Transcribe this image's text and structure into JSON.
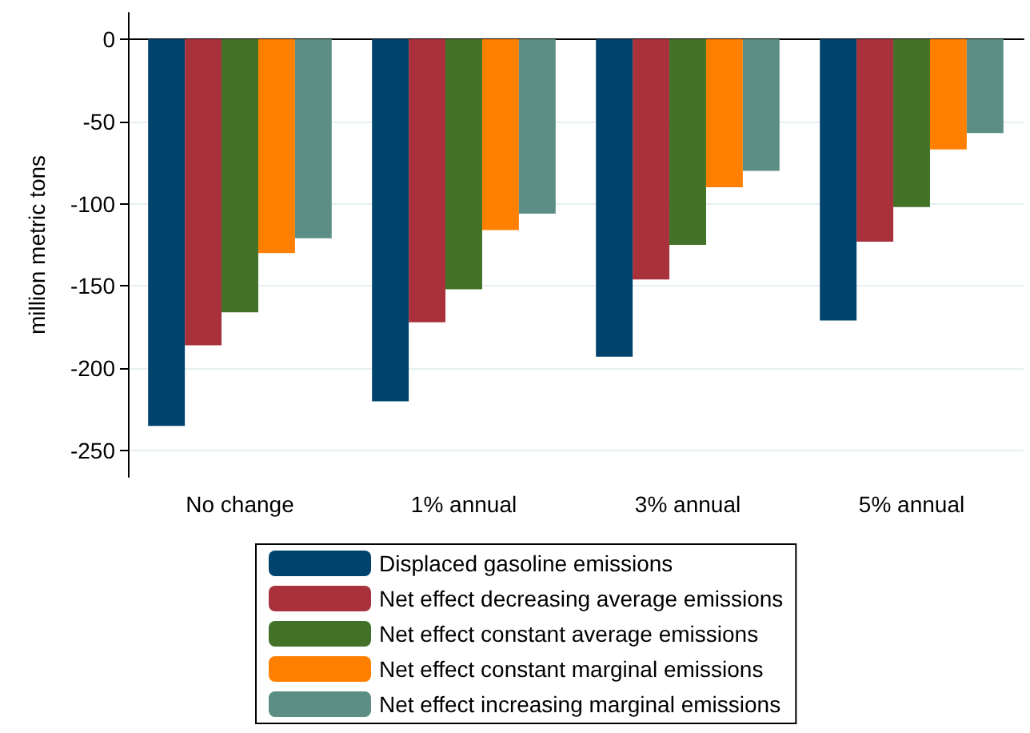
{
  "chart_data": {
    "type": "bar",
    "ylabel": "million metric tons",
    "categories": [
      "No change",
      "1% annual",
      "3% annual",
      "5% annual"
    ],
    "series": [
      {
        "name": "Displaced gasoline emissions",
        "color": "#00446e",
        "values": [
          -235,
          -220,
          -193,
          -171
        ]
      },
      {
        "name": "Net effect decreasing average emissions",
        "color": "#a8313b",
        "values": [
          -186,
          -172,
          -146,
          -123
        ]
      },
      {
        "name": "Net effect constant average emissions",
        "color": "#417227",
        "values": [
          -166,
          -152,
          -125,
          -102
        ]
      },
      {
        "name": "Net effect constant marginal emissions",
        "color": "#ff8000",
        "values": [
          -130,
          -116,
          -90,
          -67
        ]
      },
      {
        "name": "Net effect increasing marginal emissions",
        "color": "#5c8e85",
        "values": [
          -121,
          -106,
          -80,
          -57
        ]
      }
    ],
    "ylim": [
      -266,
      16
    ],
    "yticks": [
      -250,
      -200,
      -150,
      -100,
      -50,
      0
    ],
    "grid": "y",
    "legend": "bottom"
  }
}
